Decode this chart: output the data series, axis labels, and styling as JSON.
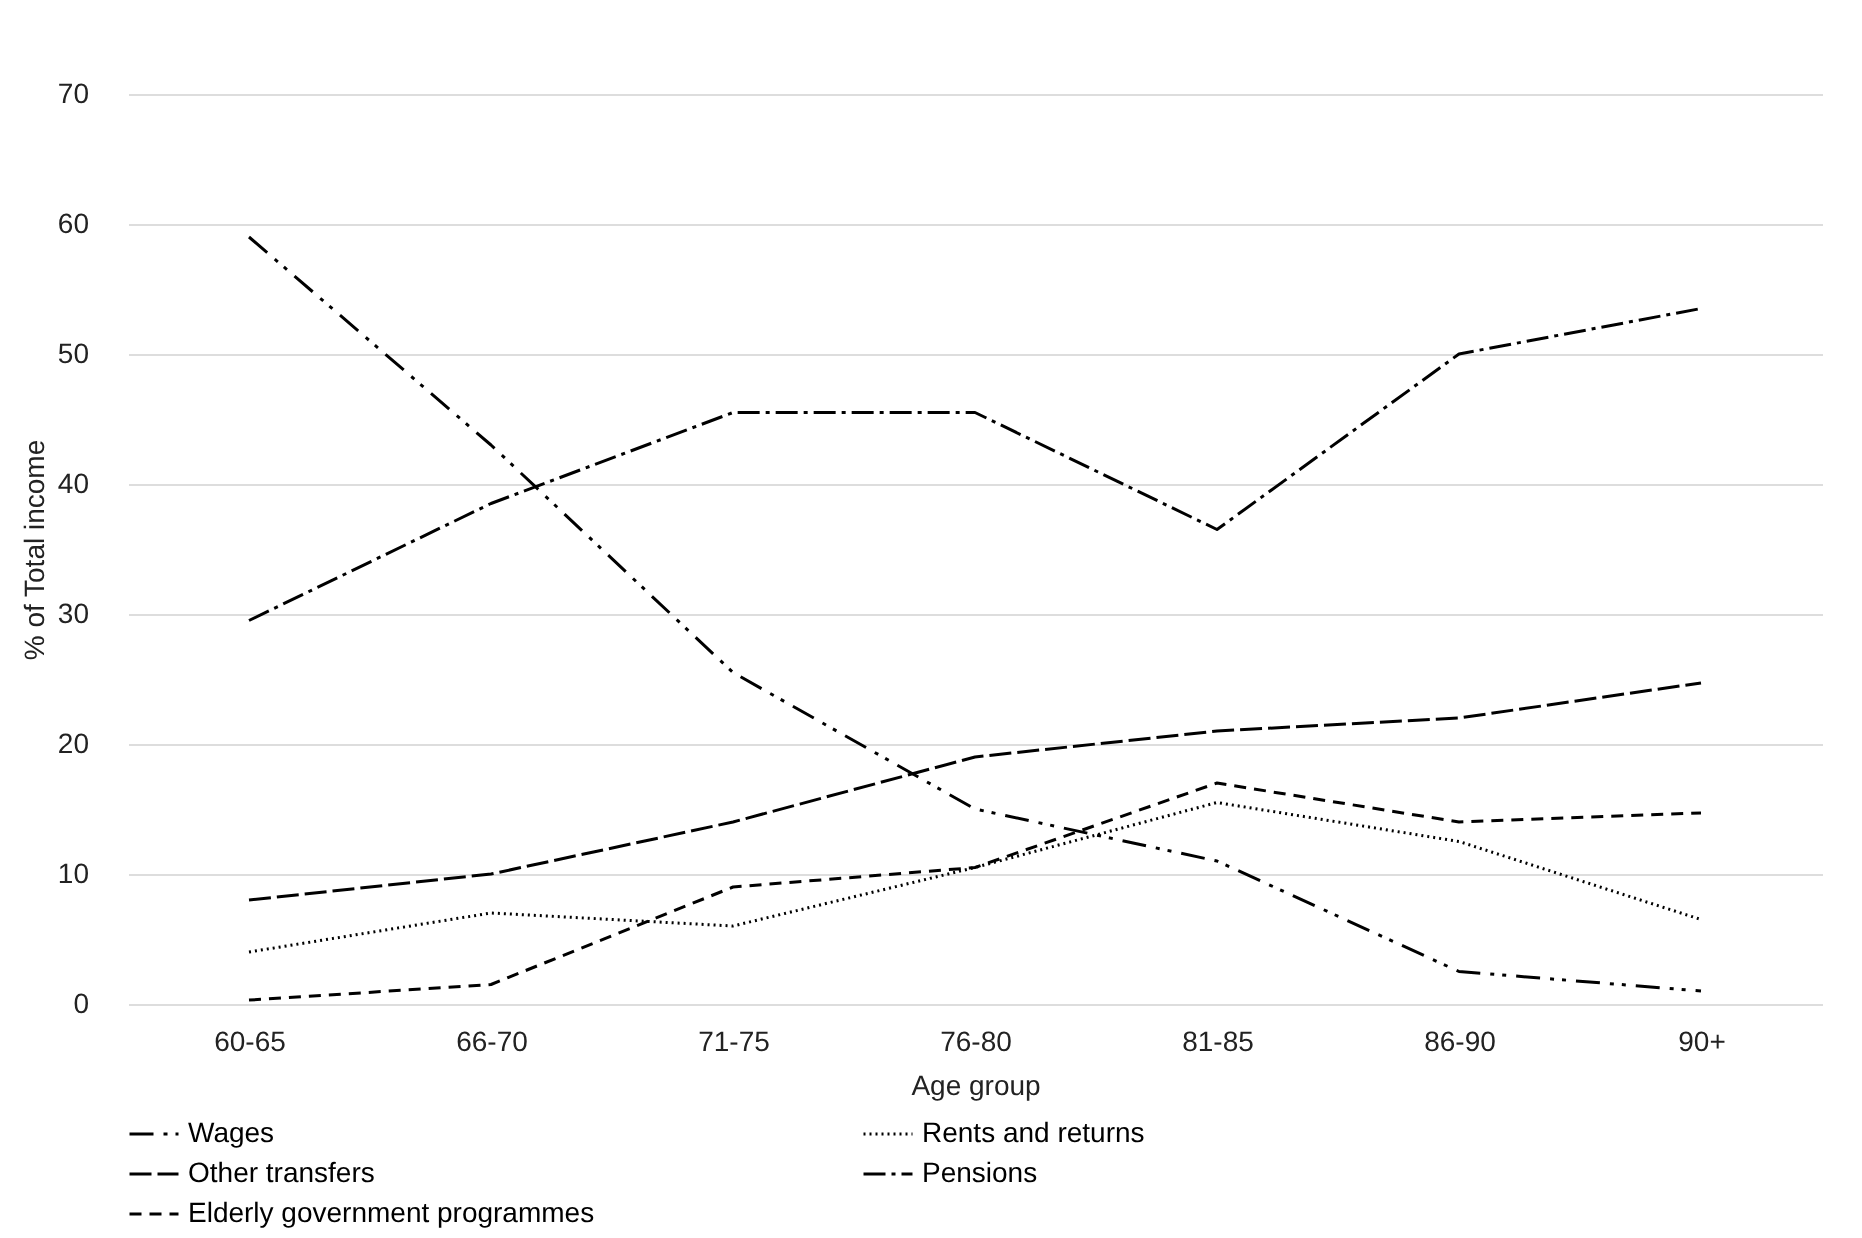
{
  "chart_data": {
    "type": "line",
    "xlabel": "Age group",
    "ylabel": "% of Total income",
    "categories": [
      "60-65",
      "66-70",
      "71-75",
      "76-80",
      "81-85",
      "86-90",
      "90+"
    ],
    "ylim": [
      0,
      70
    ],
    "yticks": [
      0,
      10,
      20,
      30,
      40,
      50,
      60,
      70
    ],
    "grid": "y",
    "legend": "bottom",
    "marker": "none",
    "series": [
      {
        "name": "Wages",
        "color": "#000000",
        "line_style": "dashdotdot",
        "values": [
          59,
          43,
          25.5,
          15,
          11,
          2.5,
          1
        ]
      },
      {
        "name": "Rents and returns",
        "color": "#000000",
        "line_style": "dotted",
        "values": [
          4,
          7,
          6,
          10.5,
          15.5,
          12.5,
          6.5
        ]
      },
      {
        "name": "Other transfers",
        "color": "#000000",
        "line_style": "longdash",
        "values": [
          8,
          10,
          14,
          19,
          21,
          22,
          24.7
        ]
      },
      {
        "name": "Pensions",
        "color": "#000000",
        "line_style": "dashdot",
        "values": [
          29.5,
          38.5,
          45.5,
          45.5,
          36.5,
          50,
          53.5
        ]
      },
      {
        "name": "Elderly government programmes",
        "color": "#000000",
        "line_style": "dashed",
        "values": [
          0.3,
          1.5,
          9,
          10.5,
          17,
          14,
          14.7
        ]
      }
    ]
  }
}
